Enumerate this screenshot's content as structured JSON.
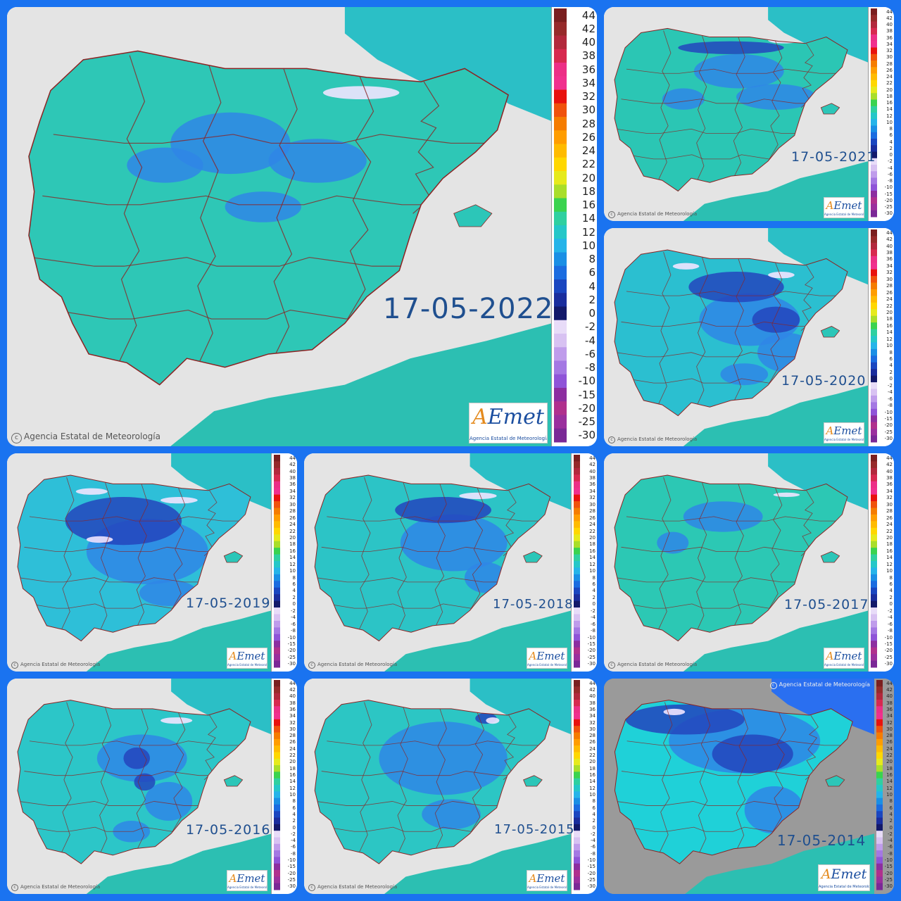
{
  "credit": "Agencia Estatal de Meteorología",
  "logo": {
    "brand_prefix": "A",
    "brand_rest": "Emet",
    "subtitle": "Agencia Estatal de Meteorología"
  },
  "legend": {
    "labels": [
      "44",
      "42",
      "40",
      "38",
      "36",
      "34",
      "32",
      "30",
      "28",
      "26",
      "24",
      "22",
      "20",
      "18",
      "16",
      "14",
      "12",
      "10",
      "8",
      "6",
      "4",
      "2",
      "0",
      "-2",
      "-4",
      "-6",
      "-8",
      "-10",
      "-15",
      "-20",
      "-25",
      "-30"
    ],
    "colors": [
      "#7a1f1f",
      "#962a2a",
      "#b2283c",
      "#d7294f",
      "#ec2f86",
      "#f0308e",
      "#e8120e",
      "#f0520c",
      "#f57c00",
      "#ff9d00",
      "#ffbb00",
      "#ffd700",
      "#e6ea1c",
      "#a9de2a",
      "#3ad34f",
      "#2fd0a0",
      "#25c7c8",
      "#25b4e9",
      "#1a8fe5",
      "#1b6ce0",
      "#1a46c0",
      "#1a2d9d",
      "#13196a",
      "#e8dcf8",
      "#d8c2f2",
      "#bf9ceb",
      "#a478e3",
      "#8f54d8",
      "#8c2ea0",
      "#b0308d",
      "#9a2f9d",
      "#7a2896"
    ]
  },
  "maps": [
    {
      "date": "17-05-2022",
      "style": "2022"
    },
    {
      "date": "17-05-2021",
      "style": "2021"
    },
    {
      "date": "17-05-2020",
      "style": "2020"
    },
    {
      "date": "17-05-2019",
      "style": "2019"
    },
    {
      "date": "17-05-2018",
      "style": "2018"
    },
    {
      "date": "17-05-2017",
      "style": "2017"
    },
    {
      "date": "17-05-2016",
      "style": "2016"
    },
    {
      "date": "17-05-2015",
      "style": "2015"
    },
    {
      "date": "17-05-2014",
      "style": "2014"
    }
  ],
  "colors": {
    "frame": "#1a73f0",
    "sea": "#e4e4e4",
    "land_warm": "#2bc9b0",
    "land_cool": "#2f8fe8",
    "land_cold": "#2447c4",
    "snow": "#f0e6ff",
    "borders": "#8b2323"
  }
}
